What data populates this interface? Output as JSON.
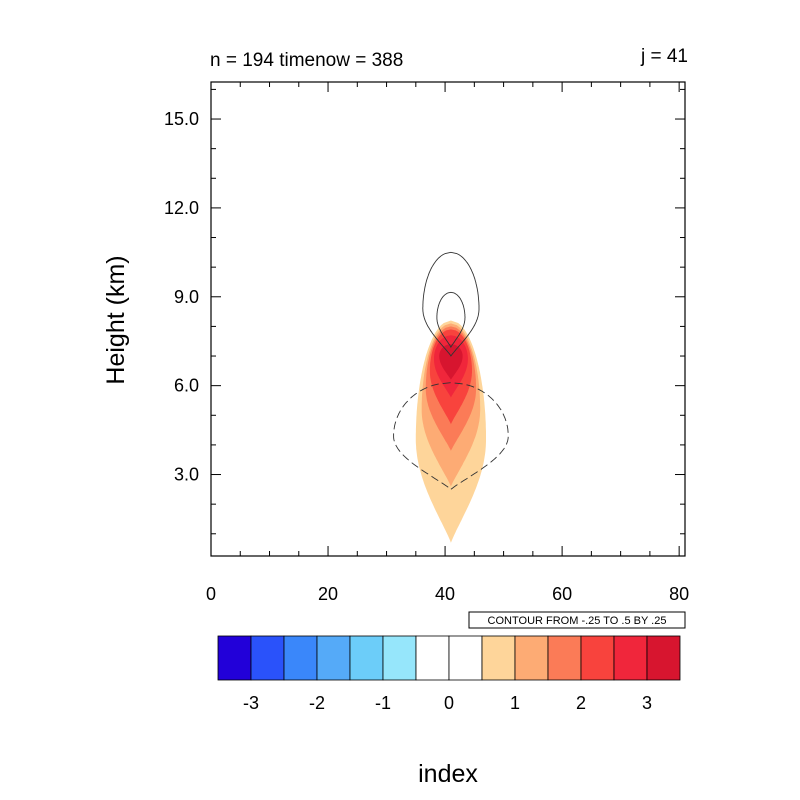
{
  "chart_data": {
    "type": "contour",
    "left_title": "n = 194  timenow = 388",
    "right_title": "j = 41",
    "xlabel": "index",
    "ylabel": "Height (km)",
    "xlim": [
      0,
      81
    ],
    "ylim": [
      0.25,
      16.25
    ],
    "x_ticks": [
      0,
      20,
      40,
      60,
      80
    ],
    "x_tick_labels": [
      "0",
      "20",
      "40",
      "60",
      "80"
    ],
    "y_ticks": [
      3,
      6,
      9,
      12,
      15
    ],
    "y_tick_labels": [
      "3.0",
      "6.0",
      "9.0",
      "12.0",
      "15.0"
    ],
    "contour_info": "CONTOUR FROM -.25 TO .5 BY .25",
    "filled_field": {
      "center_x": 41,
      "levels": [
        0.5,
        1.0,
        1.5,
        2.0,
        2.5,
        3.0
      ],
      "shapes": [
        {
          "level": 0.5,
          "y_bottom": 0.7,
          "y_top": 8.2,
          "half_width": 6.0,
          "y_widest": 4.2
        },
        {
          "level": 1.0,
          "y_bottom": 2.6,
          "y_top": 8.1,
          "half_width": 5.0,
          "y_widest": 5.2
        },
        {
          "level": 1.5,
          "y_bottom": 3.8,
          "y_top": 8.0,
          "half_width": 4.3,
          "y_widest": 5.9
        },
        {
          "level": 2.0,
          "y_bottom": 4.7,
          "y_top": 7.9,
          "half_width": 3.6,
          "y_widest": 6.5
        },
        {
          "level": 2.5,
          "y_bottom": 5.6,
          "y_top": 7.7,
          "half_width": 2.9,
          "y_widest": 6.9
        },
        {
          "level": 3.0,
          "y_bottom": 6.2,
          "y_top": 7.4,
          "half_width": 2.0,
          "y_widest": 7.0
        }
      ]
    },
    "line_contours": [
      {
        "value": 0.25,
        "style": "solid",
        "center_x": 41,
        "y_bottom": 7.0,
        "y_top": 10.5,
        "half_width": 4.8,
        "y_widest": 8.6
      },
      {
        "value": 0.5,
        "style": "solid",
        "center_x": 41,
        "y_bottom": 7.3,
        "y_top": 9.15,
        "half_width": 2.4,
        "y_widest": 8.3
      },
      {
        "value": -0.25,
        "style": "dashed",
        "center_x": 41,
        "y_bottom": 2.5,
        "y_top": 6.1,
        "half_width": 9.8,
        "y_widest": 4.3
      }
    ],
    "colorbar": {
      "labels": [
        "-3",
        "-2",
        "-1",
        "0",
        "1",
        "2",
        "3"
      ],
      "colors": [
        "#2200d9",
        "#2a52fa",
        "#3a87fa",
        "#55aaf8",
        "#6ccdf9",
        "#96e6fb",
        "#ffffff",
        "#ffffff",
        "#fed59a",
        "#fdab74",
        "#fb7b57",
        "#f8433d",
        "#f0263b",
        "#d7152f"
      ]
    }
  }
}
